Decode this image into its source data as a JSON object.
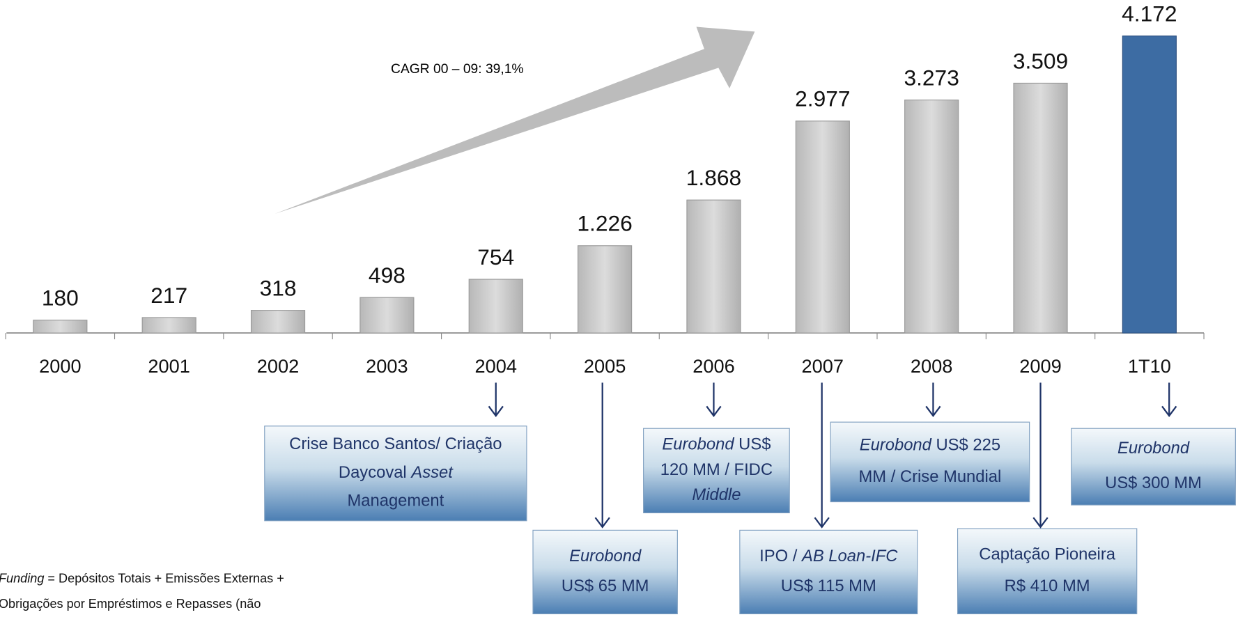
{
  "chart_data": {
    "type": "bar",
    "categories": [
      "2000",
      "2001",
      "2002",
      "2003",
      "2004",
      "2005",
      "2006",
      "2007",
      "2008",
      "2009",
      "1T10"
    ],
    "values": [
      180,
      217,
      318,
      498,
      754,
      1226,
      1868,
      2977,
      3273,
      3509,
      4172
    ],
    "value_labels": [
      "180",
      "217",
      "318",
      "498",
      "754",
      "1.226",
      "1.868",
      "2.977",
      "3.273",
      "3.509",
      "4.172"
    ],
    "colors": [
      "#c9c9c9",
      "#c9c9c9",
      "#c9c9c9",
      "#c9c9c9",
      "#c9c9c9",
      "#c9c9c9",
      "#c9c9c9",
      "#c9c9c9",
      "#c9c9c9",
      "#c9c9c9",
      "#3d6ca3"
    ],
    "ylim": [
      0,
      4500
    ],
    "annotation": "CAGR 00 – 09: 39,1%",
    "events": [
      {
        "lines": [
          [
            {
              "text": "Crise Banco Santos/ Criação"
            }
          ],
          [
            {
              "text": "Daycoval "
            },
            {
              "text": "Asset",
              "italic": true
            }
          ],
          [
            {
              "text": "Management"
            }
          ]
        ]
      },
      {
        "lines": [
          [
            {
              "text": "Eurobond",
              "italic": true
            }
          ],
          [
            {
              "text": "US$ 65 MM"
            }
          ]
        ]
      },
      {
        "lines": [
          [
            {
              "text": "Eurobond",
              "italic": true
            },
            {
              "text": " US$"
            }
          ],
          [
            {
              "text": "120 MM / FIDC"
            }
          ],
          [
            {
              "text": "Middle",
              "italic": true
            }
          ]
        ]
      },
      {
        "lines": [
          [
            {
              "text": "IPO / "
            },
            {
              "text": "AB Loan-IFC",
              "italic": true
            }
          ],
          [
            {
              "text": "US$ 115 MM"
            }
          ]
        ]
      },
      {
        "lines": [
          [
            {
              "text": "Eurobond",
              "italic": true
            },
            {
              "text": " US$ 225"
            }
          ],
          [
            {
              "text": "MM / Crise Mundial"
            }
          ]
        ]
      },
      {
        "lines": [
          [
            {
              "text": "Captação Pioneira"
            }
          ],
          [
            {
              "text": "R$ 410 MM"
            }
          ]
        ]
      },
      {
        "lines": [
          [
            {
              "text": "Eurobond",
              "italic": true
            }
          ],
          [
            {
              "text": "US$ 300 MM"
            }
          ]
        ]
      }
    ],
    "footnote": [
      [
        {
          "text": "Funding",
          "italic": true
        },
        {
          "text": " = Depósitos Totais + Emissões Externas +"
        }
      ],
      [
        {
          "text": "Obrigações por Empréstimos e Repasses (não"
        }
      ]
    ]
  }
}
